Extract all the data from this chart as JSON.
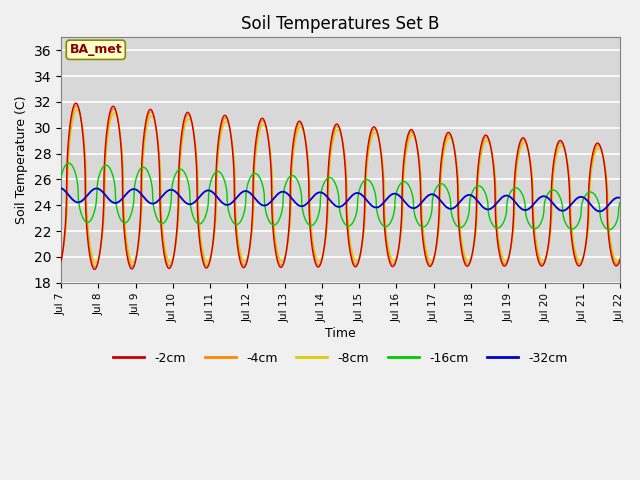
{
  "title": "Soil Temperatures Set B",
  "xlabel": "Time",
  "ylabel": "Soil Temperature (C)",
  "ylim": [
    18,
    37
  ],
  "yticks": [
    18,
    20,
    22,
    24,
    26,
    28,
    30,
    32,
    34,
    36
  ],
  "annotation": "BA_met",
  "colors": {
    "-2cm": "#cc0000",
    "-4cm": "#ff8800",
    "-8cm": "#ddcc00",
    "-16cm": "#00cc00",
    "-32cm": "#0000cc"
  },
  "legend_labels": [
    "-2cm",
    "-4cm",
    "-8cm",
    "-16cm",
    "-32cm"
  ],
  "fig_facecolor": "#f0f0f0",
  "plot_bg_color": "#d8d8d8"
}
